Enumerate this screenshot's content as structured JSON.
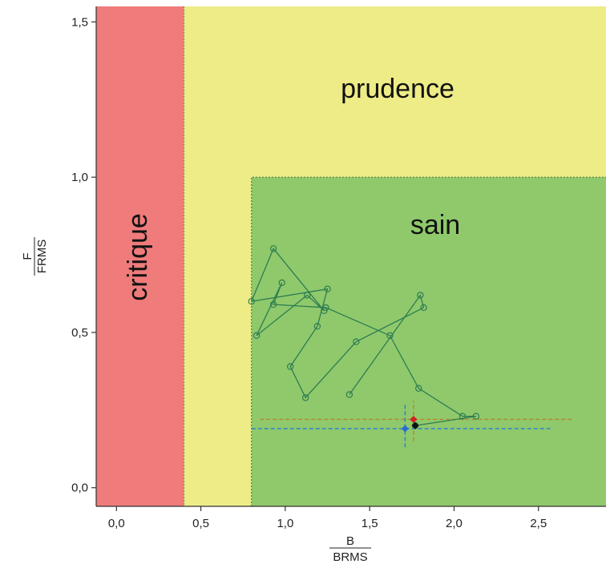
{
  "chart_data": {
    "type": "line",
    "xlabel": {
      "numerator": "B",
      "denominator": "BRMS"
    },
    "ylabel": {
      "numerator": "F",
      "denominator": "FRMS"
    },
    "xlim": [
      -0.12,
      2.9
    ],
    "ylim": [
      -0.06,
      1.55
    ],
    "x_ticks": [
      0.0,
      0.5,
      1.0,
      1.5,
      2.0,
      2.5
    ],
    "x_tick_labels": [
      "0,0",
      "0,5",
      "1,0",
      "1,5",
      "2,0",
      "2,5"
    ],
    "y_ticks": [
      0.0,
      0.5,
      1.0,
      1.5
    ],
    "y_tick_labels": [
      "0,0",
      "0,5",
      "1,0",
      "1,5"
    ],
    "zones": [
      {
        "label": "critique",
        "color": "#ef7b7b",
        "x_range": [
          -0.12,
          0.4
        ],
        "y_range": [
          -0.06,
          1.55
        ]
      },
      {
        "label": "prudence",
        "color": "#eeec86",
        "x_range": [
          0.4,
          2.9
        ],
        "y_range": [
          -0.06,
          1.55
        ]
      },
      {
        "label": "sain",
        "color": "#8fc96b",
        "x_range": [
          0.8,
          2.9
        ],
        "y_range": [
          -0.06,
          1.0
        ]
      }
    ],
    "trajectory": [
      [
        1.38,
        0.3
      ],
      [
        1.8,
        0.62
      ],
      [
        1.82,
        0.58
      ],
      [
        1.42,
        0.47
      ],
      [
        1.12,
        0.29
      ],
      [
        1.03,
        0.39
      ],
      [
        1.19,
        0.52
      ],
      [
        1.25,
        0.64
      ],
      [
        0.8,
        0.6
      ],
      [
        0.93,
        0.77
      ],
      [
        1.23,
        0.57
      ],
      [
        1.13,
        0.62
      ],
      [
        0.83,
        0.49
      ],
      [
        0.98,
        0.66
      ],
      [
        0.93,
        0.59
      ],
      [
        1.24,
        0.58
      ],
      [
        1.62,
        0.49
      ],
      [
        1.79,
        0.32
      ],
      [
        2.05,
        0.23
      ],
      [
        2.13,
        0.23
      ],
      [
        1.77,
        0.2
      ]
    ],
    "markers": [
      {
        "name": "red",
        "x": 1.76,
        "y": 0.22,
        "color": "#d42020",
        "xerr": [
          0.85,
          2.7
        ],
        "yerr": [
          0.15,
          0.28
        ],
        "errcolor": "#b8862a"
      },
      {
        "name": "blue",
        "x": 1.71,
        "y": 0.19,
        "color": "#2a6bd1",
        "xerr": [
          0.8,
          2.57
        ],
        "yerr": [
          0.13,
          0.27
        ],
        "errcolor": "#2a7bd8"
      },
      {
        "name": "black",
        "x": 1.77,
        "y": 0.2,
        "color": "#111111"
      }
    ],
    "line_color": "#2e7d52",
    "grid": false
  }
}
